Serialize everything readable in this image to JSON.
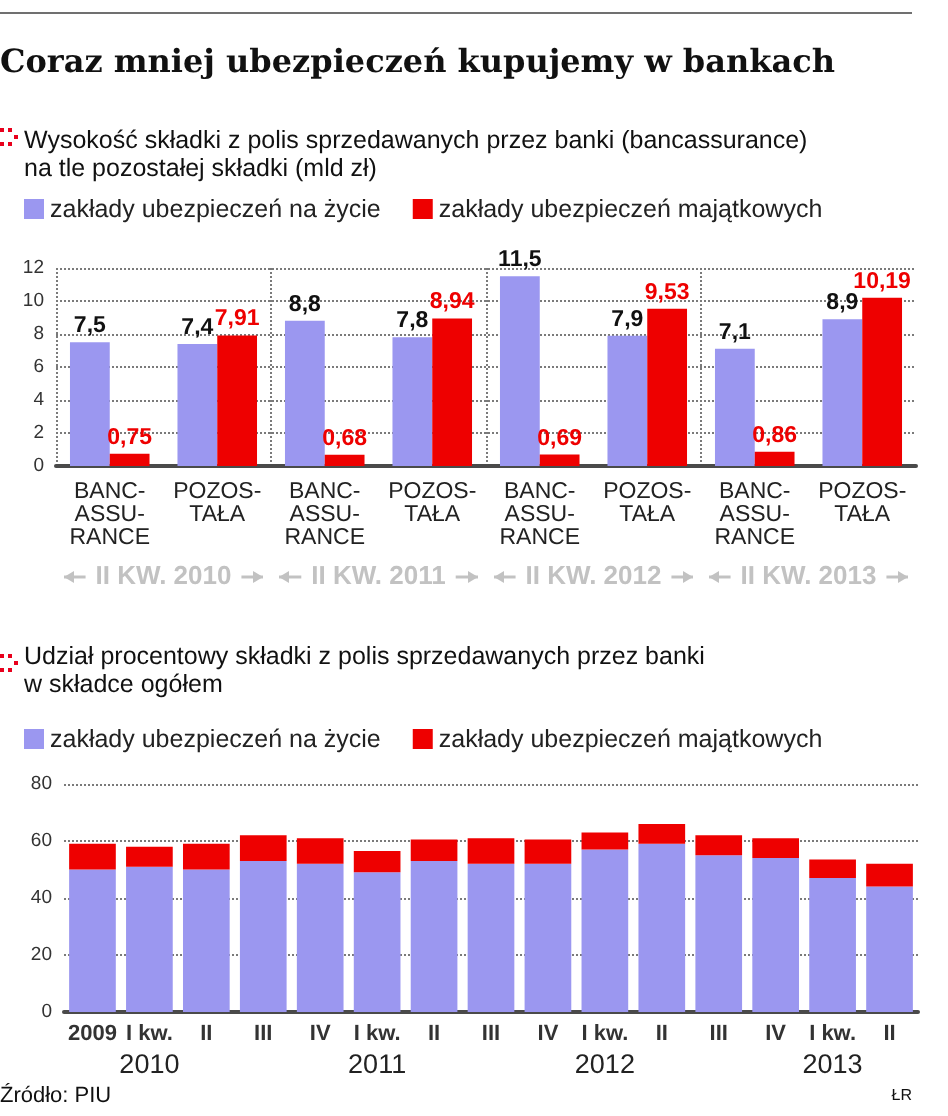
{
  "chart_data": [
    {
      "type": "bar",
      "title": "Coraz mniej ubezpieczeń kupujemy w bankach",
      "subtitle": "Wysokość składki z polis sprzedawanych przez banki (bancassurance) na tle pozostałej składki (mld zł)",
      "categories": [
        "BANC-ASSU-RANCE",
        "POZOS-TAŁA",
        "BANC-ASSU-RANCE",
        "POZOS-TAŁA",
        "BANC-ASSU-RANCE",
        "POZOS-TAŁA",
        "BANC-ASSU-RANCE",
        "POZOS-TAŁA"
      ],
      "series": [
        {
          "name": "zakłady ubezpieczeń na życie",
          "color": "#9b97f0",
          "values": [
            7.5,
            7.4,
            8.8,
            7.8,
            11.5,
            7.9,
            7.1,
            8.9
          ],
          "value_labels": [
            "7,5",
            "7,4",
            "8,8",
            "7,8",
            "11,5",
            "7,9",
            "7,1",
            "8,9"
          ]
        },
        {
          "name": "zakłady ubezpieczeń majątkowych",
          "color": "#ee0000",
          "values": [
            0.75,
            7.91,
            0.68,
            8.94,
            0.69,
            9.53,
            0.86,
            10.19
          ],
          "value_labels": [
            "0,75",
            "7,91",
            "0,68",
            "8,94",
            "0,69",
            "9,53",
            "0,86",
            "10,19"
          ]
        }
      ],
      "ylim": [
        0,
        12
      ],
      "yticks": [
        0,
        2,
        4,
        6,
        8,
        10,
        12
      ],
      "grid": "y",
      "legend": "top left",
      "annotations": [
        "II KW. 2010",
        "II KW. 2011",
        "II KW. 2012",
        "II KW. 2013"
      ]
    },
    {
      "type": "bar",
      "stacked": true,
      "title": "Udział procentowy składki z polis sprzedawanych przez banki w składce ogółem",
      "categories": [
        "2009",
        "I kw. 2010",
        "II",
        "III",
        "IV",
        "I kw. 2011",
        "II",
        "III",
        "IV",
        "I kw. 2012",
        "II",
        "III",
        "IV",
        "I kw. 2013",
        "II"
      ],
      "series": [
        {
          "name": "zakłady ubezpieczeń na życie",
          "color": "#9b97f0",
          "values": [
            50,
            51,
            50,
            53,
            52,
            49,
            53,
            52,
            52,
            57,
            59,
            55,
            54,
            47,
            44
          ]
        },
        {
          "name": "zakłady ubezpieczeń majątkowych",
          "color": "#ee0000",
          "values": [
            9,
            7,
            9,
            9,
            9,
            7.5,
            7.5,
            9,
            8.5,
            6,
            7,
            7,
            7,
            6.5,
            8
          ]
        }
      ],
      "ylim": [
        0,
        80
      ],
      "yticks": [
        0,
        20,
        40,
        60,
        80
      ],
      "grid": "y",
      "legend": "top left",
      "annotations": [
        "Źródło: PIU",
        "ŁR"
      ]
    }
  ]
}
